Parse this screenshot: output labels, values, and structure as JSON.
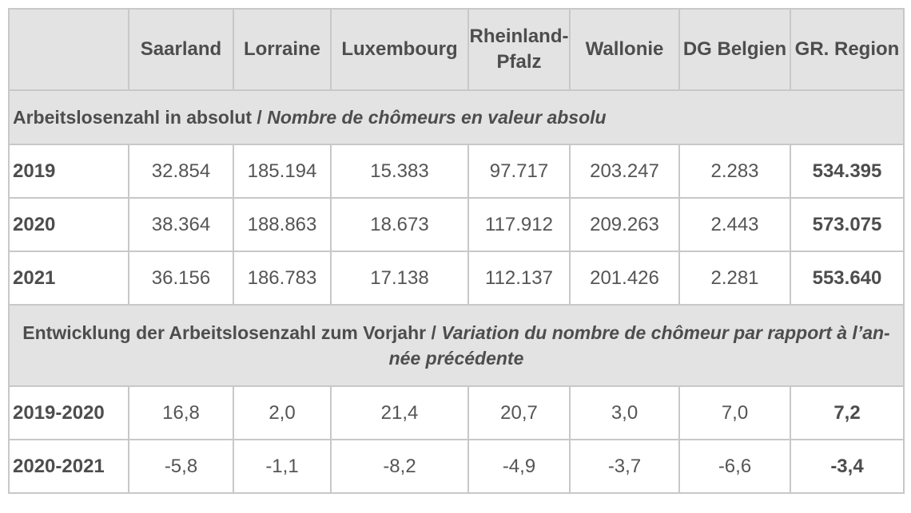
{
  "table": {
    "header": {
      "corner": "",
      "columns": [
        "Saarland",
        "Lorraine",
        "Luxembourg",
        "Rheinland-\nPfalz",
        "Wallonie",
        "DG Belgien",
        "GR. Region"
      ]
    },
    "section1": {
      "title_de": "Arbeitslosenzahl in absolut / ",
      "title_fr": "Nombre de chômeurs en valeur absolu"
    },
    "rows_absolute": [
      {
        "year": "2019",
        "values": [
          "32.854",
          "185.194",
          "15.383",
          "97.717",
          "203.247",
          "2.283",
          "534.395"
        ]
      },
      {
        "year": "2020",
        "values": [
          "38.364",
          "188.863",
          "18.673",
          "117.912",
          "209.263",
          "2.443",
          "573.075"
        ]
      },
      {
        "year": "2021",
        "values": [
          "36.156",
          "186.783",
          "17.138",
          "112.137",
          "201.426",
          "2.281",
          "553.640"
        ]
      }
    ],
    "section2": {
      "title_de": "Entwicklung der Arbeitslosenzahl zum Vorjahr / ",
      "title_fr": "Variation du nombre de chômeur par rapport à l’an-née précédente"
    },
    "rows_variation": [
      {
        "year": "2019-2020",
        "values": [
          "16,8",
          "2,0",
          "21,4",
          "20,7",
          "3,0",
          "7,0",
          "7,2"
        ]
      },
      {
        "year": "2020-2021",
        "values": [
          "-5,8",
          "-1,1",
          "-8,2",
          "-4,9",
          "-3,7",
          "-6,6",
          "-3,4"
        ]
      }
    ]
  }
}
